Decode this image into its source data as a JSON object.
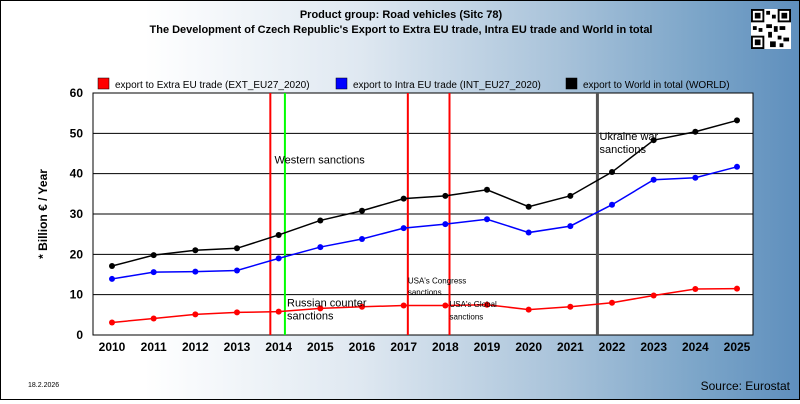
{
  "header": {
    "line1": "Product group: Road vehicles (Sitc 78)",
    "line2": "The Development of Czech Republic's Export to Extra EU trade, Intra EU trade and World in total"
  },
  "footer": {
    "date": "18.2.2026",
    "source": "Source: Eurostat"
  },
  "colors": {
    "extra": "#ff0000",
    "intra": "#0000ff",
    "world": "#000000",
    "sanction_line": "#ff0000",
    "green_line": "#00ff00",
    "ukraine_line": "#555555"
  },
  "chart_data": {
    "type": "line",
    "ylabel": "* Billion € / Year",
    "ylim": [
      0,
      60
    ],
    "yticks": [
      0,
      10,
      20,
      30,
      40,
      50,
      60
    ],
    "grid": true,
    "legend_position": "top",
    "x": [
      "2010",
      "2011",
      "2012",
      "2013",
      "2014",
      "2015",
      "2016",
      "2017",
      "2018",
      "2019",
      "2020",
      "2021",
      "2022",
      "2023",
      "2024",
      "2025"
    ],
    "series": [
      {
        "key": "extra",
        "name": "export to Extra EU trade (EXT_EU27_2020)",
        "values": [
          3.1,
          4.1,
          5.1,
          5.6,
          5.8,
          6.6,
          7.0,
          7.3,
          7.3,
          7.5,
          6.3,
          7.0,
          8.0,
          9.8,
          11.4,
          11.5
        ]
      },
      {
        "key": "intra",
        "name": "export to Intra EU trade (INT_EU27_2020)",
        "values": [
          13.9,
          15.6,
          15.7,
          16.0,
          19.0,
          21.8,
          23.8,
          26.5,
          27.5,
          28.7,
          25.4,
          27.0,
          32.3,
          38.5,
          39.0,
          41.7
        ]
      },
      {
        "key": "world",
        "name": "export to World in total (WORLD)",
        "values": [
          17.1,
          19.8,
          21.0,
          21.5,
          24.8,
          28.4,
          30.8,
          33.8,
          34.5,
          36.0,
          31.8,
          34.5,
          40.4,
          48.3,
          50.4,
          53.2
        ]
      }
    ],
    "events": [
      {
        "x": 2013.8,
        "color": "#ff0000",
        "label": "",
        "label_lines": []
      },
      {
        "x": 2014.15,
        "color": "#00ff00",
        "label": "",
        "label_lines": []
      },
      {
        "x": 2017.1,
        "color": "#ff0000",
        "label": "",
        "label_lines": []
      },
      {
        "x": 2018.1,
        "color": "#ff0000",
        "label": "",
        "label_lines": []
      },
      {
        "x": 2021.65,
        "color": "#555555",
        "label": "",
        "label_lines": []
      }
    ],
    "annotations": [
      {
        "text": "Western sanctions",
        "x": 2013.9,
        "y": 42.5
      },
      {
        "text": "Russian counter",
        "x": 2014.2,
        "y": 7.1
      },
      {
        "text": "sanctions",
        "x": 2014.2,
        "y": 3.9
      },
      {
        "text": "USA's Congress",
        "x": 2017.1,
        "y": 12.8
      },
      {
        "text": "sanctions",
        "x": 2017.1,
        "y": 9.9
      },
      {
        "text": "USA's Global",
        "x": 2018.1,
        "y": 6.9
      },
      {
        "text": "sanctions",
        "x": 2018.1,
        "y": 3.9
      },
      {
        "text": "Ukraine war",
        "x": 2021.7,
        "y": 48.3
      },
      {
        "text": "sanctions",
        "x": 2021.7,
        "y": 45.1
      }
    ]
  }
}
